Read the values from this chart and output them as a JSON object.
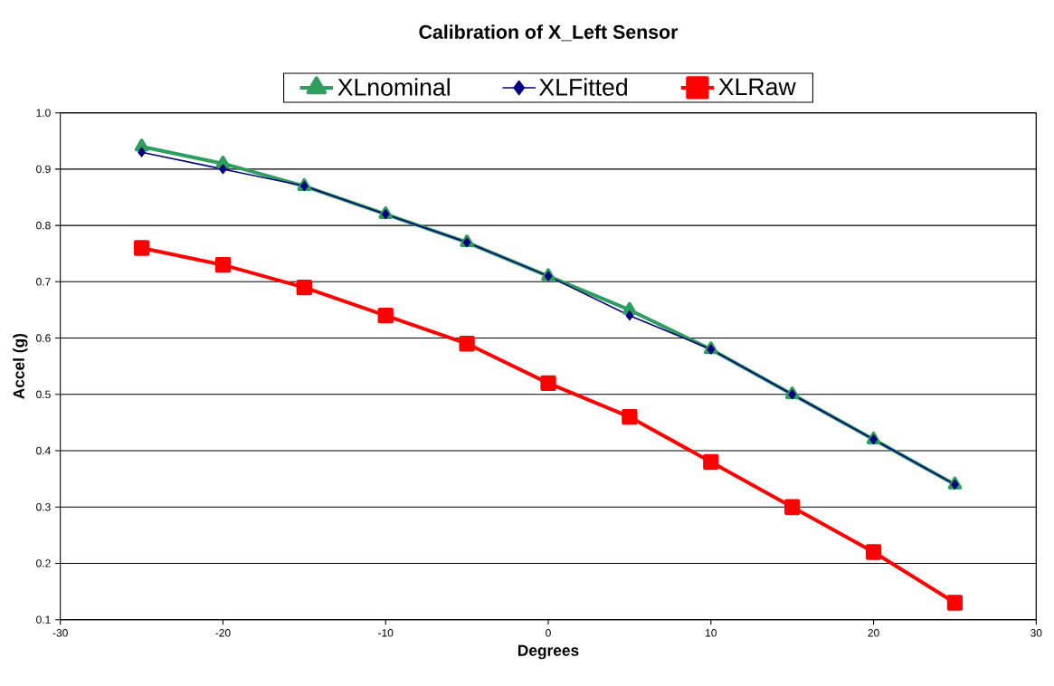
{
  "chart_data": {
    "type": "line",
    "title": "Calibration of X_Left Sensor",
    "xlabel": "Degrees",
    "ylabel": "Accel (g)",
    "x": [
      -25,
      -20,
      -15,
      -10,
      -5,
      0,
      5,
      10,
      15,
      20,
      25
    ],
    "series": [
      {
        "name": "XLnominal",
        "color": "#2e9e5e",
        "marker": "triangle",
        "values": [
          0.94,
          0.91,
          0.87,
          0.82,
          0.77,
          0.71,
          0.65,
          0.58,
          0.5,
          0.42,
          0.34
        ]
      },
      {
        "name": "XLFitted",
        "color": "#000080",
        "marker": "diamond",
        "values": [
          0.93,
          0.9,
          0.87,
          0.82,
          0.77,
          0.71,
          0.64,
          0.58,
          0.5,
          0.42,
          0.34
        ]
      },
      {
        "name": "XLRaw",
        "color": "#ff0000",
        "marker": "square",
        "values": [
          0.76,
          0.73,
          0.69,
          0.64,
          0.59,
          0.52,
          0.46,
          0.38,
          0.3,
          0.22,
          0.13
        ]
      }
    ],
    "xlim": [
      -30,
      30
    ],
    "xticks": [
      -30,
      -20,
      -10,
      0,
      10,
      20,
      30
    ],
    "ylim": [
      0.1,
      1.0
    ],
    "yticks": [
      0.1,
      0.2,
      0.3,
      0.4,
      0.5,
      0.6,
      0.7,
      0.8,
      0.9,
      {
        "value": 1.0,
        "label": "1.0"
      }
    ],
    "grid": "y",
    "legend": "top",
    "line_style": "solid"
  }
}
